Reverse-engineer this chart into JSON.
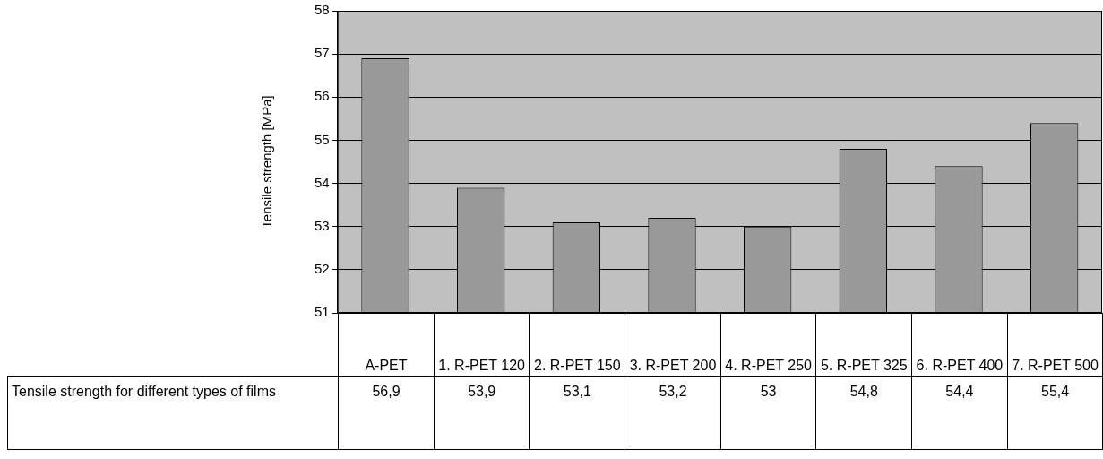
{
  "chart_data": {
    "type": "bar",
    "ylabel": "Tensile strength [MPa]",
    "categories": [
      "A-PET",
      "1. R-PET 120",
      "2. R-PET 150",
      "3. R-PET 200",
      "4. R-PET 250",
      "5. R-PET 325",
      "6. R-PET 400",
      "7. R-PET 500"
    ],
    "series": [
      {
        "name": "Tensile strength for different types of films",
        "color": "#999999",
        "values": [
          56.9,
          53.9,
          53.1,
          53.2,
          53,
          54.8,
          54.4,
          55.4
        ],
        "value_labels": [
          "56,9",
          "53,9",
          "53,1",
          "53,2",
          "53",
          "54,8",
          "54,4",
          "55,4"
        ]
      }
    ],
    "ylim": [
      51,
      58
    ],
    "yticks": [
      51,
      52,
      53,
      54,
      55,
      56,
      57,
      58
    ],
    "grid": "y",
    "legend": false
  }
}
